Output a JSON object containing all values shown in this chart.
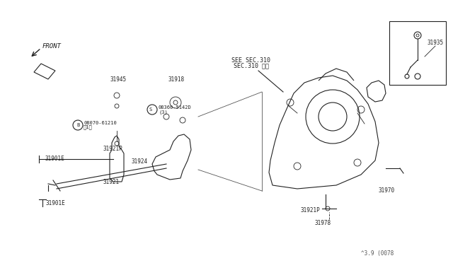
{
  "title": "",
  "bg_color": "#ffffff",
  "fig_width": 6.4,
  "fig_height": 3.72,
  "dpi": 100,
  "diagram_number": "^3.9 (0078",
  "labels": {
    "front": "FRONT",
    "see_sec": "SEE SEC.310",
    "sec_310": "SEC.310 参照",
    "part_31945": "31945",
    "part_31918": "31918",
    "part_08360": "§08360-5142D\n(3)",
    "part_08070": "¢08070-61210\n（1）",
    "part_31921P_1": "31921P",
    "part_31901E_1": "31901E",
    "part_31924": "31924",
    "part_31921": "31921",
    "part_31901E_2": "31901E",
    "part_31921P_2": "31921P",
    "part_31978": "31978",
    "part_31970": "31970",
    "part_31935": "31935"
  }
}
